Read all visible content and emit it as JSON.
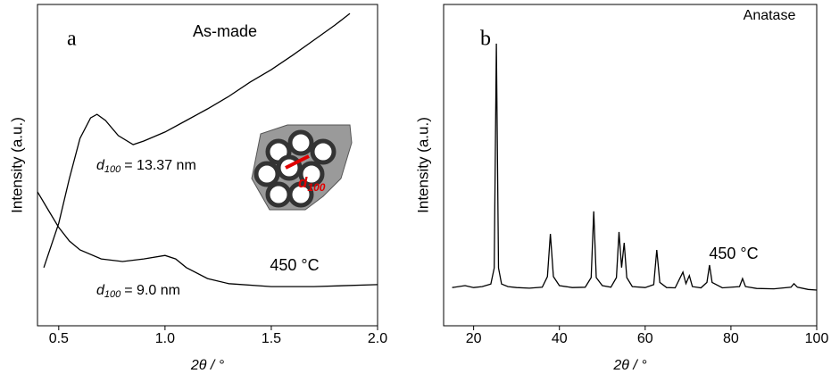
{
  "chart_data": [
    {
      "type": "line",
      "panel_label": "a",
      "xlabel": "2θ / °",
      "ylabel": "Intensity (a.u.)",
      "xlim": [
        0.4,
        2.0
      ],
      "xticks": [
        0.5,
        {
          "value": 1.0,
          "label": "1.0"
        },
        1.5,
        {
          "value": 2.0,
          "label": "2.0"
        }
      ],
      "ylim": [
        0,
        100
      ],
      "series": [
        {
          "name": "As-made",
          "color": "#000000",
          "x": [
            0.43,
            0.5,
            0.55,
            0.6,
            0.65,
            0.68,
            0.72,
            0.78,
            0.85,
            0.9,
            1.0,
            1.1,
            1.2,
            1.3,
            1.4,
            1.5,
            1.6,
            1.7,
            1.8,
            1.87
          ],
          "values": [
            18.1,
            31.9,
            45.8,
            58.3,
            64.7,
            65.8,
            63.9,
            59.2,
            56.4,
            57.5,
            60.3,
            63.9,
            67.5,
            71.4,
            75.8,
            79.7,
            84.2,
            88.9,
            93.6,
            97.2
          ]
        },
        {
          "name": "450 °C",
          "color": "#000000",
          "x": [
            0.4,
            0.45,
            0.5,
            0.55,
            0.6,
            0.7,
            0.8,
            0.9,
            1.0,
            1.05,
            1.1,
            1.2,
            1.3,
            1.5,
            1.7,
            2.0
          ],
          "values": [
            41.7,
            36.1,
            30.6,
            26.4,
            23.6,
            20.8,
            20.0,
            20.8,
            21.9,
            20.8,
            18.1,
            14.7,
            13.1,
            12.2,
            12.2,
            12.8
          ]
        }
      ],
      "annotations": [
        {
          "symbol": "d",
          "subscript": "100",
          "text": "= 13.37 nm"
        },
        {
          "symbol": "d",
          "subscript": "100",
          "text": "= 9.0 nm"
        },
        {
          "symbol": "d",
          "subscript": "100"
        }
      ]
    },
    {
      "type": "line",
      "panel_label": "b",
      "xlabel": "2θ / °",
      "ylabel": "Intensity (a.u.)",
      "xlim": [
        13,
        100
      ],
      "xticks": [
        20,
        40,
        60,
        80,
        100
      ],
      "ylim": [
        0,
        100
      ],
      "annotation": "Anatase",
      "series": [
        {
          "name": "450 °C",
          "color": "#000000",
          "x": [
            15,
            18,
            20,
            22,
            24,
            24.8,
            25.3,
            25.8,
            26.5,
            28,
            30,
            33,
            36,
            37.2,
            37.9,
            38.6,
            40,
            43,
            46,
            47.4,
            48.0,
            48.6,
            50,
            52,
            53.3,
            53.9,
            54.5,
            55.1,
            55.7,
            57,
            60,
            62,
            62.7,
            63.4,
            65,
            67,
            68.8,
            69.5,
            70.3,
            71,
            73,
            74.4,
            75.0,
            75.6,
            78,
            82,
            82.7,
            83.4,
            86,
            90,
            94,
            94.7,
            95.5,
            98,
            100
          ],
          "values": [
            11.9,
            12.5,
            11.9,
            12.2,
            13.0,
            18.0,
            87.8,
            18.0,
            13.0,
            12.2,
            11.9,
            11.7,
            12.0,
            15.3,
            28.6,
            15.3,
            12.5,
            11.9,
            12.0,
            15.0,
            35.6,
            15.0,
            12.5,
            12.0,
            15.0,
            29.2,
            18.1,
            25.8,
            15.0,
            12.2,
            11.9,
            12.8,
            23.6,
            13.5,
            11.9,
            11.8,
            16.7,
            13.1,
            15.6,
            12.2,
            11.8,
            13.5,
            18.9,
            13.5,
            11.8,
            12.2,
            14.7,
            12.2,
            11.6,
            11.5,
            12.0,
            13.1,
            12.0,
            11.3,
            11.1
          ]
        }
      ]
    }
  ]
}
